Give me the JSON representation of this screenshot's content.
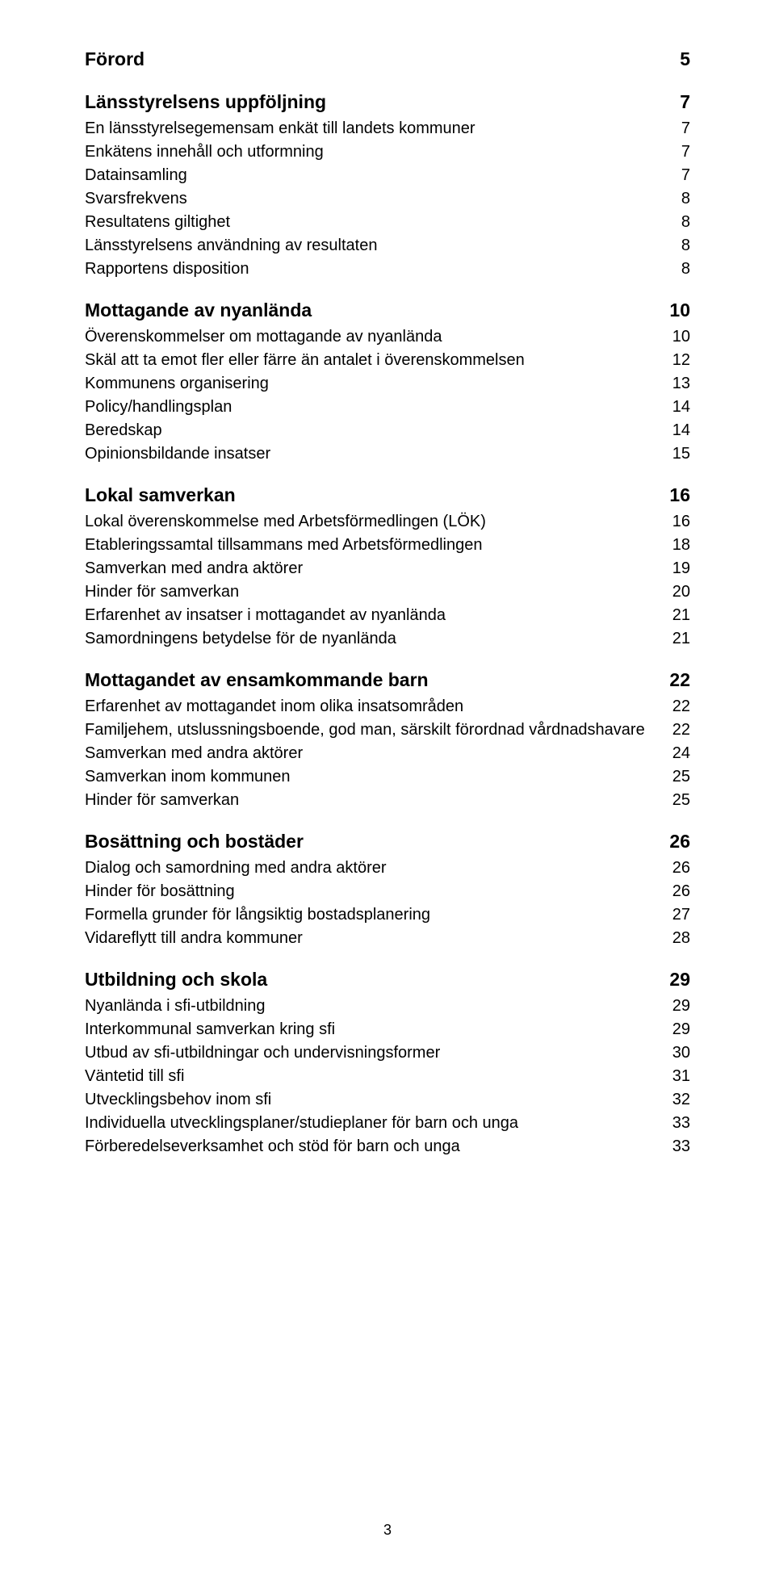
{
  "page_number": "3",
  "sections": [
    {
      "title": "Förord",
      "page": "5",
      "items": []
    },
    {
      "title": "Länsstyrelsens uppföljning",
      "page": "7",
      "items": [
        {
          "title": "En länsstyrelsegemensam enkät till landets kommuner",
          "page": "7"
        },
        {
          "title": "Enkätens innehåll och utformning",
          "page": "7"
        },
        {
          "title": "Datainsamling",
          "page": "7"
        },
        {
          "title": "Svarsfrekvens",
          "page": "8"
        },
        {
          "title": "Resultatens giltighet",
          "page": "8"
        },
        {
          "title": "Länsstyrelsens användning av resultaten",
          "page": "8"
        },
        {
          "title": "Rapportens disposition",
          "page": "8"
        }
      ]
    },
    {
      "title": "Mottagande av nyanlända",
      "page": "10",
      "items": [
        {
          "title": "Överenskommelser om mottagande av nyanlända",
          "page": "10"
        },
        {
          "title": "Skäl att ta emot fler eller färre än antalet i överenskommelsen",
          "page": "12"
        },
        {
          "title": "Kommunens organisering",
          "page": "13"
        },
        {
          "title": "Policy/handlingsplan",
          "page": "14"
        },
        {
          "title": "Beredskap",
          "page": "14"
        },
        {
          "title": "Opinionsbildande insatser",
          "page": "15"
        }
      ]
    },
    {
      "title": "Lokal samverkan",
      "page": "16",
      "items": [
        {
          "title": "Lokal överenskommelse med Arbetsförmedlingen (LÖK)",
          "page": "16"
        },
        {
          "title": "Etableringssamtal tillsammans med Arbetsförmedlingen",
          "page": "18"
        },
        {
          "title": "Samverkan med andra aktörer",
          "page": "19"
        },
        {
          "title": "Hinder för samverkan",
          "page": "20"
        },
        {
          "title": "Erfarenhet av insatser i mottagandet av nyanlända",
          "page": "21"
        },
        {
          "title": "Samordningens betydelse för de nyanlända",
          "page": "21"
        }
      ]
    },
    {
      "title": "Mottagandet av ensamkommande barn",
      "page": "22",
      "items": [
        {
          "title": "Erfarenhet av mottagandet inom olika insatsområden",
          "page": "22"
        },
        {
          "title": "Familjehem, utslussningsboende, god man, särskilt förordnad vårdnadshavare",
          "page": "22"
        },
        {
          "title": "Samverkan med andra aktörer",
          "page": "24"
        },
        {
          "title": "Samverkan inom kommunen",
          "page": "25"
        },
        {
          "title": "Hinder för samverkan",
          "page": "25"
        }
      ]
    },
    {
      "title": "Bosättning och bostäder",
      "page": "26",
      "items": [
        {
          "title": "Dialog och samordning med andra aktörer",
          "page": "26"
        },
        {
          "title": "Hinder för bosättning",
          "page": "26"
        },
        {
          "title": "Formella grunder för långsiktig bostadsplanering",
          "page": "27"
        },
        {
          "title": "Vidareflytt till andra kommuner",
          "page": "28"
        }
      ]
    },
    {
      "title": "Utbildning och skola",
      "page": "29",
      "items": [
        {
          "title": "Nyanlända i sfi-utbildning",
          "page": "29"
        },
        {
          "title": "Interkommunal samverkan kring sfi",
          "page": "29"
        },
        {
          "title": "Utbud av sfi-utbildningar och undervisningsformer",
          "page": "30"
        },
        {
          "title": "Väntetid till sfi",
          "page": "31"
        },
        {
          "title": "Utvecklingsbehov inom sfi",
          "page": "32"
        },
        {
          "title": "Individuella utvecklingsplaner/studieplaner för barn och unga",
          "page": "33"
        },
        {
          "title": "Förberedelseverksamhet och stöd för barn och unga",
          "page": "33"
        }
      ]
    }
  ]
}
